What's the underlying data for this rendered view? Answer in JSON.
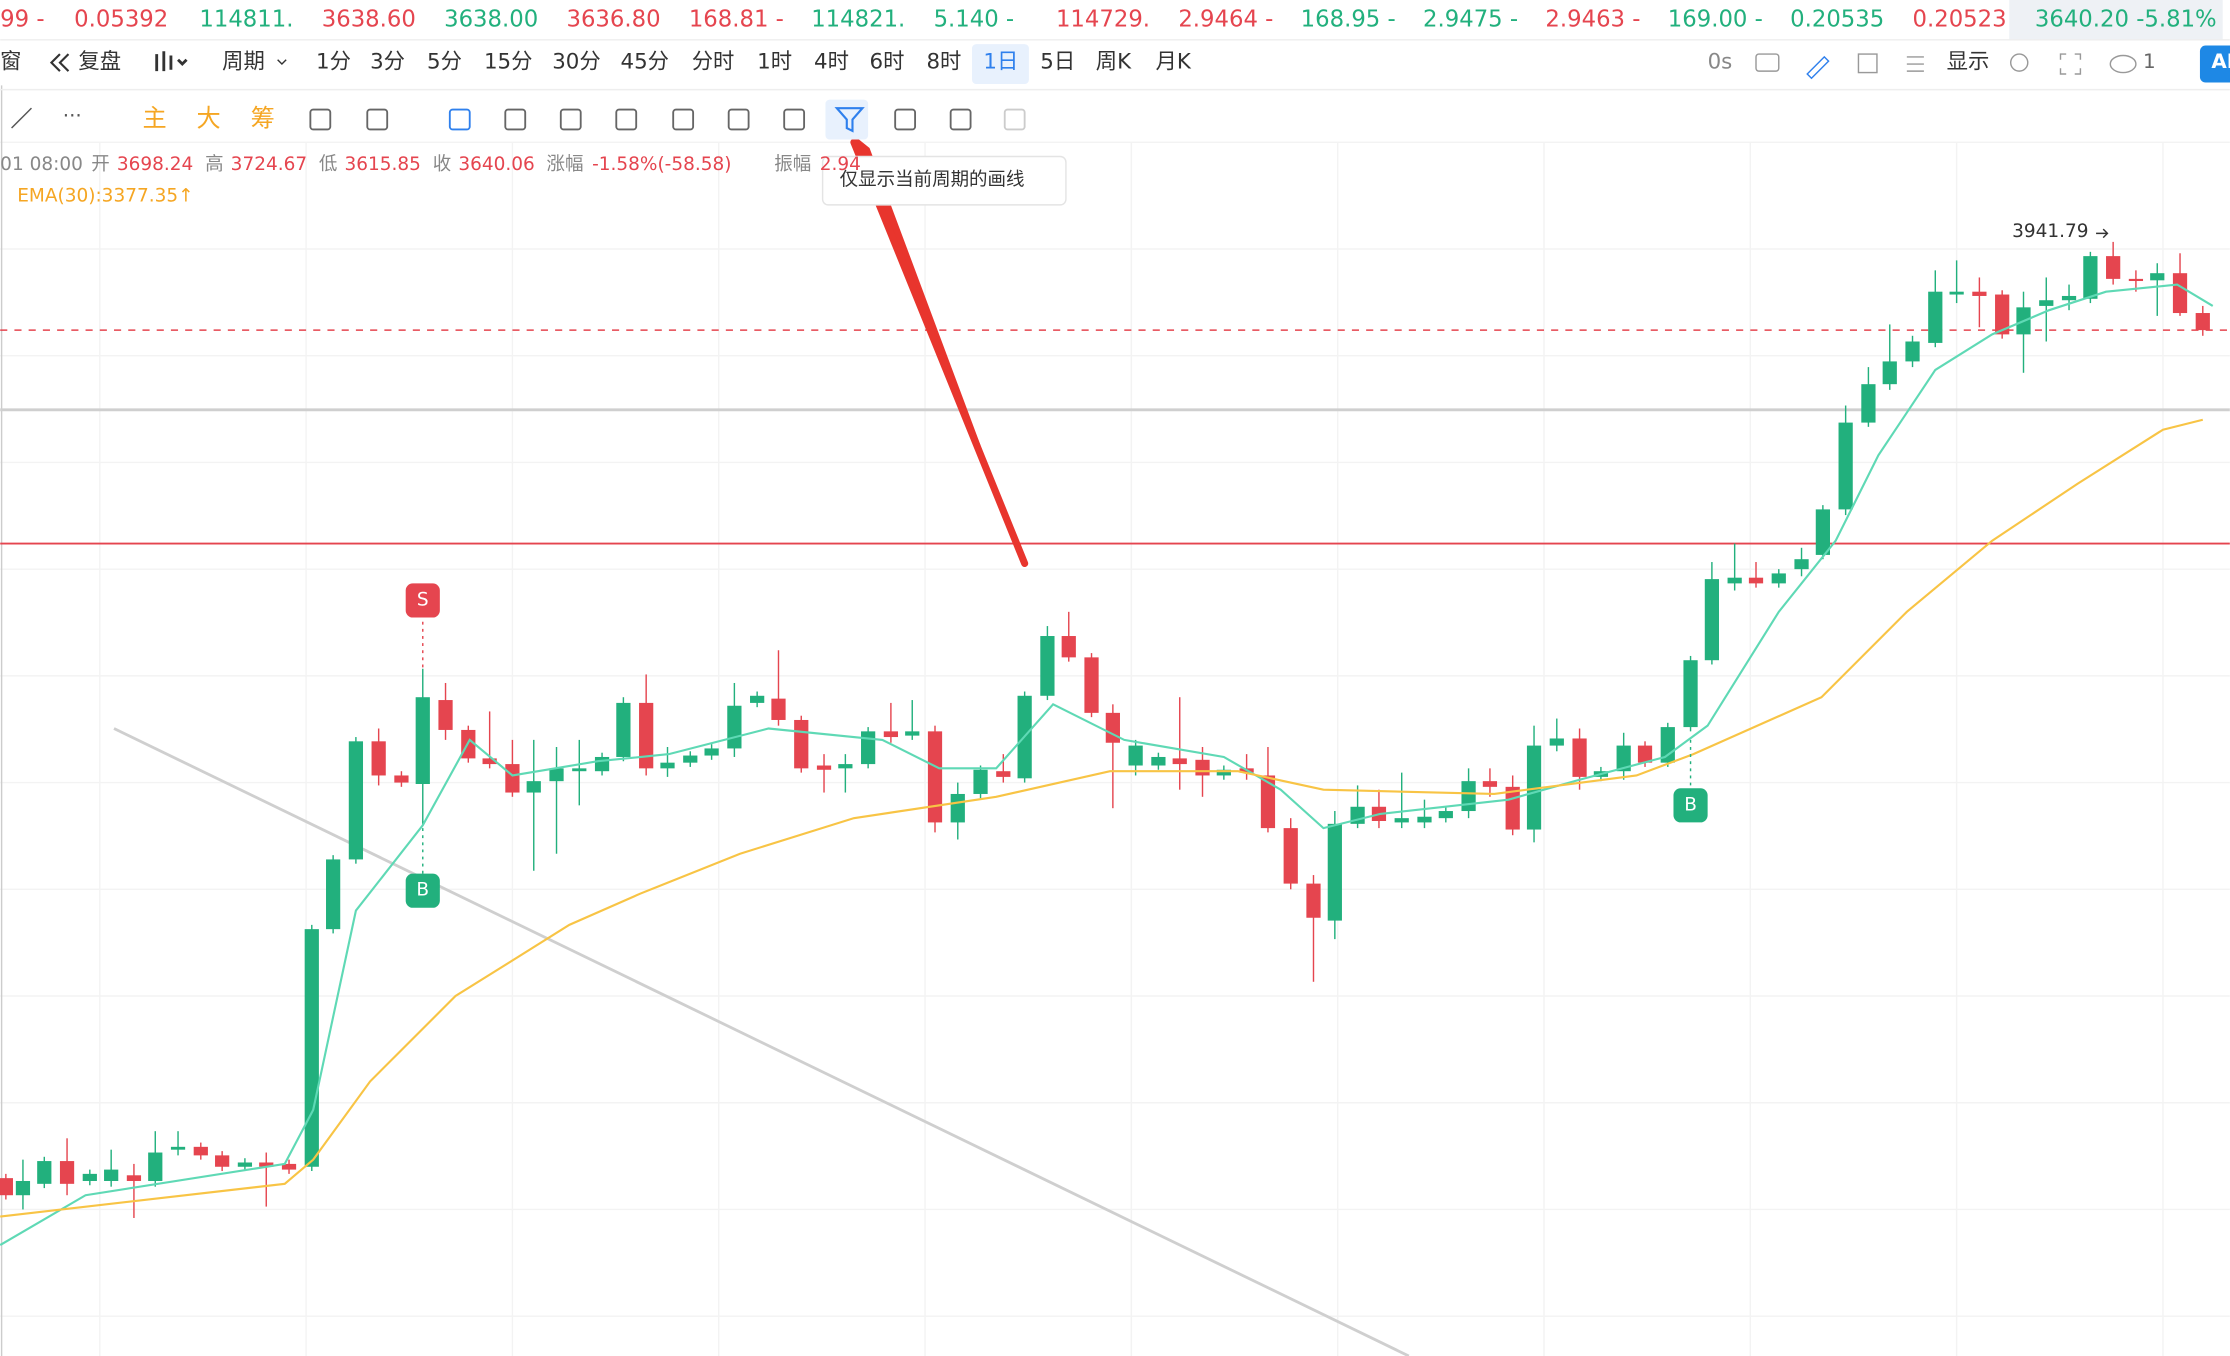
{
  "ticker": [
    {
      "text": "99 -",
      "color": "#e5454f"
    },
    {
      "text": "0.05392",
      "color": "#e5454f"
    },
    {
      "text": "114811.",
      "color": "#22b07d"
    },
    {
      "text": "3638.60",
      "color": "#e5454f"
    },
    {
      "text": "3638.00",
      "color": "#22b07d"
    },
    {
      "text": "3636.80",
      "color": "#e5454f"
    },
    {
      "text": "168.81 -",
      "color": "#e5454f"
    },
    {
      "text": "114821.",
      "color": "#22b07d"
    },
    {
      "text": "5.140 -",
      "color": "#22b07d"
    },
    {
      "text": "114729.",
      "color": "#e5454f"
    },
    {
      "text": "2.9464 -",
      "color": "#e5454f"
    },
    {
      "text": "168.95 -",
      "color": "#22b07d"
    },
    {
      "text": "2.9475 -",
      "color": "#22b07d"
    },
    {
      "text": "2.9463 -",
      "color": "#e5454f"
    },
    {
      "text": "169.00 -",
      "color": "#22b07d"
    },
    {
      "text": "0.20535",
      "color": "#22b07d"
    },
    {
      "text": "0.20523",
      "color": "#e5454f"
    },
    {
      "text": "3640.20 -5.81%",
      "color": "#22b07d"
    }
  ],
  "toolbar": {
    "window": "窗",
    "replay": "复盘",
    "period": "周期",
    "intervals": [
      "1分",
      "3分",
      "5分",
      "15分",
      "30分",
      "45分",
      "分时",
      "1时",
      "4时",
      "6时",
      "8时",
      "1日",
      "5日",
      "周K",
      "月K"
    ],
    "active_interval": "1日",
    "timer": "0s",
    "display": "显示",
    "cloud_count": "1",
    "ai": "AI"
  },
  "tools": {
    "main": "主",
    "big": "大",
    "chips": "筹",
    "tooltip": "仅显示当前周期的画线"
  },
  "info": {
    "time": "01 08:00",
    "items": [
      {
        "label": "开",
        "value": "3698.24"
      },
      {
        "label": "高",
        "value": "3724.67"
      },
      {
        "label": "低",
        "value": "3615.85"
      },
      {
        "label": "收",
        "value": "3640.06"
      },
      {
        "label": "涨幅",
        "value": "-1.58%(-58.58)"
      },
      {
        "label": "振幅",
        "value": "2.94"
      }
    ],
    "ema": "EMA(30):3377.35↑"
  },
  "chart": {
    "high_label": "3941.79",
    "sell_marker": "S",
    "buy_markers": [
      "B",
      "B"
    ]
  }
}
